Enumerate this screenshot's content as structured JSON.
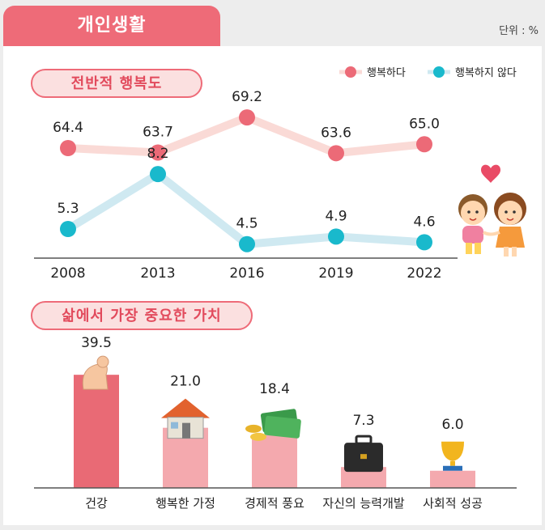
{
  "header": {
    "title": "개인생활",
    "unit": "단위 : %"
  },
  "colors": {
    "accent": "#ee6b78",
    "happy_dot": "#ec6a77",
    "happy_line": "#fadad6",
    "unhappy_dot": "#19b9cc",
    "unhappy_line": "#cfe9f1",
    "bar_main": "#e96a75",
    "bar_light": "#f4a9ae"
  },
  "chart_data": [
    {
      "type": "line",
      "title": "전반적 행복도",
      "x": [
        "2008",
        "2013",
        "2016",
        "2019",
        "2022"
      ],
      "series": [
        {
          "name": "행복하다",
          "values": [
            64.4,
            63.7,
            69.2,
            63.6,
            65.0
          ],
          "labels": [
            "64.4",
            "63.7",
            "69.2",
            "63.6",
            "65.0"
          ]
        },
        {
          "name": "행복하지 않다",
          "values": [
            5.3,
            8.2,
            4.5,
            4.9,
            4.6
          ],
          "labels": [
            "5.3",
            "8.2",
            "4.5",
            "4.9",
            "4.6"
          ]
        }
      ],
      "legend_position": "top-right"
    },
    {
      "type": "bar",
      "title": "삶에서 가장 중요한 가치",
      "categories": [
        "건강",
        "행복한 가정",
        "경제적 풍요",
        "자신의 능력개발",
        "사회적 성공"
      ],
      "values": [
        39.5,
        21.0,
        18.4,
        7.3,
        6.0
      ],
      "labels": [
        "39.5",
        "21.0",
        "18.4",
        "7.3",
        "6.0"
      ],
      "icons": [
        "flexed-arm-icon",
        "house-icon",
        "money-icon",
        "briefcase-icon",
        "trophy-icon"
      ]
    }
  ]
}
